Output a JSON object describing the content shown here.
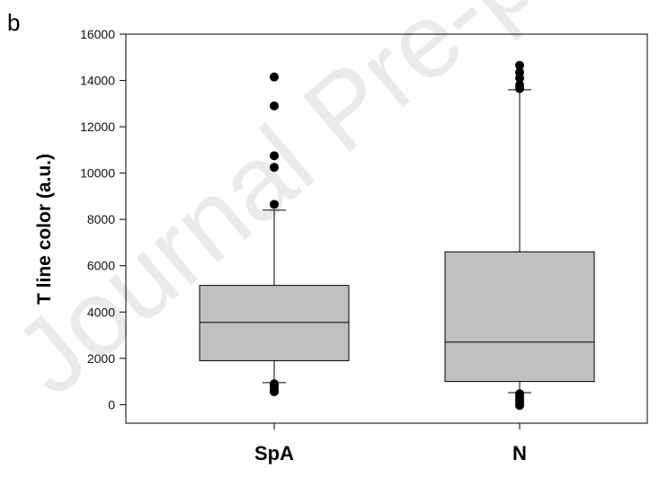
{
  "panel_letter": "b",
  "watermark": "Journal Pre-proof",
  "colors": {
    "box_fill": "#c0c0c0",
    "stroke": "#000000",
    "outlier": "#000000"
  },
  "chart_data": {
    "type": "box",
    "title": "",
    "xlabel": "",
    "ylabel": "T line color (a.u.)",
    "ylim": [
      -800,
      16000
    ],
    "yticks": [
      0,
      2000,
      4000,
      6000,
      8000,
      10000,
      12000,
      14000,
      16000
    ],
    "grid": false,
    "categories": [
      "SpA",
      "N"
    ],
    "boxes": [
      {
        "category": "SpA",
        "whisker_low": 950,
        "q1": 1900,
        "median": 3550,
        "q3": 5150,
        "whisker_high": 8400,
        "outliers": [
          14150,
          12900,
          10750,
          10250,
          8650,
          900,
          780,
          650,
          560
        ]
      },
      {
        "category": "N",
        "whisker_low": 520,
        "q1": 1000,
        "median": 2700,
        "q3": 6600,
        "whisker_high": 13600,
        "outliers": [
          14650,
          14350,
          14100,
          13800,
          13650,
          470,
          350,
          200,
          80,
          -30
        ]
      }
    ]
  }
}
